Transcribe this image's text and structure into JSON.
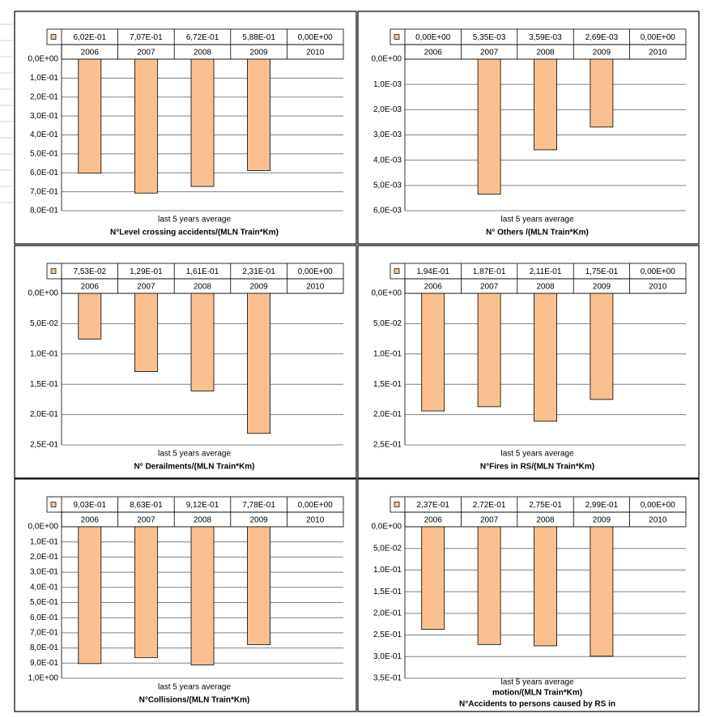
{
  "chart_data": [
    {
      "type": "bar",
      "title": "N°Level crossing accidents/(MLN Train*Km)",
      "categories": [
        "2006",
        "2007",
        "2008",
        "2009",
        "2010"
      ],
      "series": [
        {
          "name": "last 5 years average",
          "color": "#fac090",
          "values": [
            0.602,
            0.707,
            0.672,
            0.588,
            0
          ],
          "value_labels": [
            "6,02E-01",
            "7,07E-01",
            "6,72E-01",
            "5,88E-01",
            "0,00E+00"
          ]
        }
      ],
      "ylim": [
        0,
        0.8
      ],
      "y_inverted": true,
      "grid": true,
      "yticks": [
        {
          "value": 0,
          "label": "0,0E+00"
        },
        {
          "value": 0.1,
          "label": "1,0E-01"
        },
        {
          "value": 0.2,
          "label": "2,0E-01"
        },
        {
          "value": 0.3,
          "label": "3,0E-01"
        },
        {
          "value": 0.4,
          "label": "4,0E-01"
        },
        {
          "value": 0.5,
          "label": "5,0E-01"
        },
        {
          "value": 0.6,
          "label": "6,0E-01"
        },
        {
          "value": 0.7,
          "label": "7,0E-01"
        },
        {
          "value": 0.8,
          "label": "8,0E-01"
        }
      ]
    },
    {
      "type": "bar",
      "title": "N° Others /(MLN Train*Km)",
      "categories": [
        "2006",
        "2007",
        "2008",
        "2009",
        "2010"
      ],
      "series": [
        {
          "name": "last 5 years average",
          "color": "#fac090",
          "values": [
            0,
            0.00535,
            0.00359,
            0.00269,
            0
          ],
          "value_labels": [
            "0,00E+00",
            "5,35E-03",
            "3,59E-03",
            "2,69E-03",
            "0,00E+00"
          ]
        }
      ],
      "ylim": [
        0,
        0.006
      ],
      "y_inverted": true,
      "grid": true,
      "yticks": [
        {
          "value": 0,
          "label": "0,0E+00"
        },
        {
          "value": 0.001,
          "label": "1,0E-03"
        },
        {
          "value": 0.002,
          "label": "2,0E-03"
        },
        {
          "value": 0.003,
          "label": "3,0E-03"
        },
        {
          "value": 0.004,
          "label": "4,0E-03"
        },
        {
          "value": 0.005,
          "label": "5,0E-03"
        },
        {
          "value": 0.006,
          "label": "6,0E-03"
        }
      ]
    },
    {
      "type": "bar",
      "title": "N° Derailments/(MLN Train*Km)",
      "categories": [
        "2006",
        "2007",
        "2008",
        "2009",
        "2010"
      ],
      "series": [
        {
          "name": "last 5 years average",
          "color": "#fac090",
          "values": [
            0.0753,
            0.129,
            0.161,
            0.231,
            0
          ],
          "value_labels": [
            "7,53E-02",
            "1,29E-01",
            "1,61E-01",
            "2,31E-01",
            "0,00E+00"
          ]
        }
      ],
      "ylim": [
        0,
        0.25
      ],
      "y_inverted": true,
      "grid": true,
      "yticks": [
        {
          "value": 0,
          "label": "0,0E+00"
        },
        {
          "value": 0.05,
          "label": "5,0E-02"
        },
        {
          "value": 0.1,
          "label": "1,0E-01"
        },
        {
          "value": 0.15,
          "label": "1,5E-01"
        },
        {
          "value": 0.2,
          "label": "2,0E-01"
        },
        {
          "value": 0.25,
          "label": "2,5E-01"
        }
      ]
    },
    {
      "type": "bar",
      "title": "N°Fires in RS/(MLN Train*Km)",
      "categories": [
        "2006",
        "2007",
        "2008",
        "2009",
        "2010"
      ],
      "series": [
        {
          "name": "last 5 years average",
          "color": "#fac090",
          "values": [
            0.194,
            0.187,
            0.211,
            0.175,
            0
          ],
          "value_labels": [
            "1,94E-01",
            "1,87E-01",
            "2,11E-01",
            "1,75E-01",
            "0,00E+00"
          ]
        }
      ],
      "ylim": [
        0,
        0.25
      ],
      "y_inverted": true,
      "grid": true,
      "yticks": [
        {
          "value": 0,
          "label": "0,0E+00"
        },
        {
          "value": 0.05,
          "label": "5,0E-02"
        },
        {
          "value": 0.1,
          "label": "1,0E-01"
        },
        {
          "value": 0.15,
          "label": "1,5E-01"
        },
        {
          "value": 0.2,
          "label": "2,0E-01"
        },
        {
          "value": 0.25,
          "label": "2,5E-01"
        }
      ]
    },
    {
      "type": "bar",
      "title": "N°Collisions/(MLN Train*Km)",
      "categories": [
        "2006",
        "2007",
        "2008",
        "2009",
        "2010"
      ],
      "series": [
        {
          "name": "last 5 years average",
          "color": "#fac090",
          "values": [
            0.903,
            0.863,
            0.912,
            0.778,
            0
          ],
          "value_labels": [
            "9,03E-01",
            "8,63E-01",
            "9,12E-01",
            "7,78E-01",
            "0,00E+00"
          ]
        }
      ],
      "ylim": [
        0,
        1
      ],
      "y_inverted": true,
      "grid": true,
      "yticks": [
        {
          "value": 0,
          "label": "0,0E+00"
        },
        {
          "value": 0.1,
          "label": "1,0E-01"
        },
        {
          "value": 0.2,
          "label": "2,0E-01"
        },
        {
          "value": 0.3,
          "label": "3,0E-01"
        },
        {
          "value": 0.4,
          "label": "4,0E-01"
        },
        {
          "value": 0.5,
          "label": "5,0E-01"
        },
        {
          "value": 0.6,
          "label": "6,0E-01"
        },
        {
          "value": 0.7,
          "label": "7,0E-01"
        },
        {
          "value": 0.8,
          "label": "8,0E-01"
        },
        {
          "value": 0.9,
          "label": "9,0E-01"
        },
        {
          "value": 1,
          "label": "1,0E+00"
        }
      ]
    },
    {
      "type": "bar",
      "title": [
        "N°Accidents to persons caused by RS in",
        "motion/(MLN Train*Km)"
      ],
      "categories": [
        "2006",
        "2007",
        "2008",
        "2009",
        "2010"
      ],
      "series": [
        {
          "name": "last 5 years average",
          "color": "#fac090",
          "values": [
            0.237,
            0.272,
            0.275,
            0.299,
            0
          ],
          "value_labels": [
            "2,37E-01",
            "2,72E-01",
            "2,75E-01",
            "2,99E-01",
            "0,00E+00"
          ]
        }
      ],
      "ylim": [
        0,
        0.35
      ],
      "y_inverted": true,
      "grid": true,
      "yticks": [
        {
          "value": 0,
          "label": "0,0E+00"
        },
        {
          "value": 0.05,
          "label": "5,0E-02"
        },
        {
          "value": 0.1,
          "label": "1,0E-01"
        },
        {
          "value": 0.15,
          "label": "1,5E-01"
        },
        {
          "value": 0.2,
          "label": "2,0E-01"
        },
        {
          "value": 0.25,
          "label": "2,5E-01"
        },
        {
          "value": 0.3,
          "label": "3,0E-01"
        },
        {
          "value": 0.35,
          "label": "3,5E-01"
        }
      ]
    }
  ]
}
